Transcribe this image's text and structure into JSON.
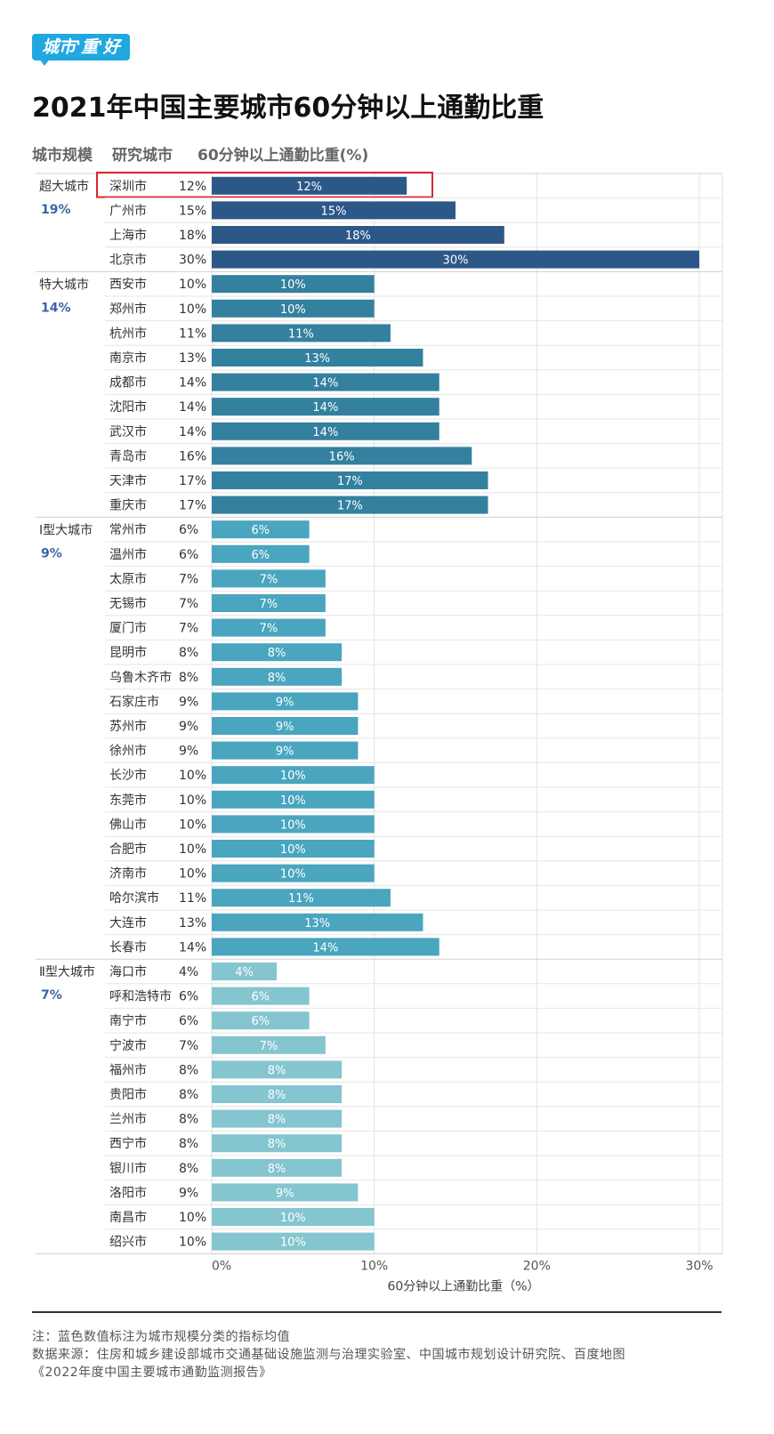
{
  "logo": {
    "text": "城市'重'好"
  },
  "title": "2021年中国主要城市60分钟以上通勤比重",
  "headers": {
    "scale": "城市规模",
    "city": "研究城市",
    "metric": "60分钟以上通勤比重(%)"
  },
  "colors": {
    "super": "#2c5888",
    "mega": "#34809f",
    "large1": "#4aa5bf",
    "large2": "#84c5cf",
    "highlight": "#d9272e",
    "avg_text": "#3b63a8"
  },
  "chart_data": {
    "type": "bar",
    "orientation": "horizontal",
    "title": "2021年中国主要城市60分钟以上通勤比重",
    "xlabel": "60分钟以上通勤比重（%）",
    "xlim": [
      0,
      30
    ],
    "xticks": [
      "0%",
      "10%",
      "20%",
      "30%"
    ],
    "grid": true,
    "highlight": "深圳市",
    "groups": [
      {
        "name": "超大城市",
        "avg": "19%",
        "color_key": "super",
        "cities": [
          "深圳市",
          "广州市",
          "上海市",
          "北京市"
        ],
        "values": [
          12,
          15,
          18,
          30
        ]
      },
      {
        "name": "特大城市",
        "avg": "14%",
        "color_key": "mega",
        "cities": [
          "西安市",
          "郑州市",
          "杭州市",
          "南京市",
          "成都市",
          "沈阳市",
          "武汉市",
          "青岛市",
          "天津市",
          "重庆市"
        ],
        "values": [
          10,
          10,
          11,
          13,
          14,
          14,
          14,
          16,
          17,
          17
        ]
      },
      {
        "name": "Ⅰ型大城市",
        "avg": "9%",
        "color_key": "large1",
        "cities": [
          "常州市",
          "温州市",
          "太原市",
          "无锡市",
          "厦门市",
          "昆明市",
          "乌鲁木齐市",
          "石家庄市",
          "苏州市",
          "徐州市",
          "长沙市",
          "东莞市",
          "佛山市",
          "合肥市",
          "济南市",
          "哈尔滨市",
          "大连市",
          "长春市"
        ],
        "values": [
          6,
          6,
          7,
          7,
          7,
          8,
          8,
          9,
          9,
          9,
          10,
          10,
          10,
          10,
          10,
          11,
          13,
          14
        ]
      },
      {
        "name": "Ⅱ型大城市",
        "avg": "7%",
        "color_key": "large2",
        "cities": [
          "海口市",
          "呼和浩特市",
          "南宁市",
          "宁波市",
          "福州市",
          "贵阳市",
          "兰州市",
          "西宁市",
          "银川市",
          "洛阳市",
          "南昌市",
          "绍兴市"
        ],
        "values": [
          4,
          6,
          6,
          7,
          8,
          8,
          8,
          8,
          8,
          9,
          10,
          10
        ]
      }
    ]
  },
  "notes": {
    "note": "注：蓝色数值标注为城市规模分类的指标均值",
    "source": "数据来源：住房和城乡建设部城市交通基础设施监测与治理实验室、中国城市规划设计研究院、百度地图",
    "report": "《2022年度中国主要城市通勤监测报告》"
  }
}
